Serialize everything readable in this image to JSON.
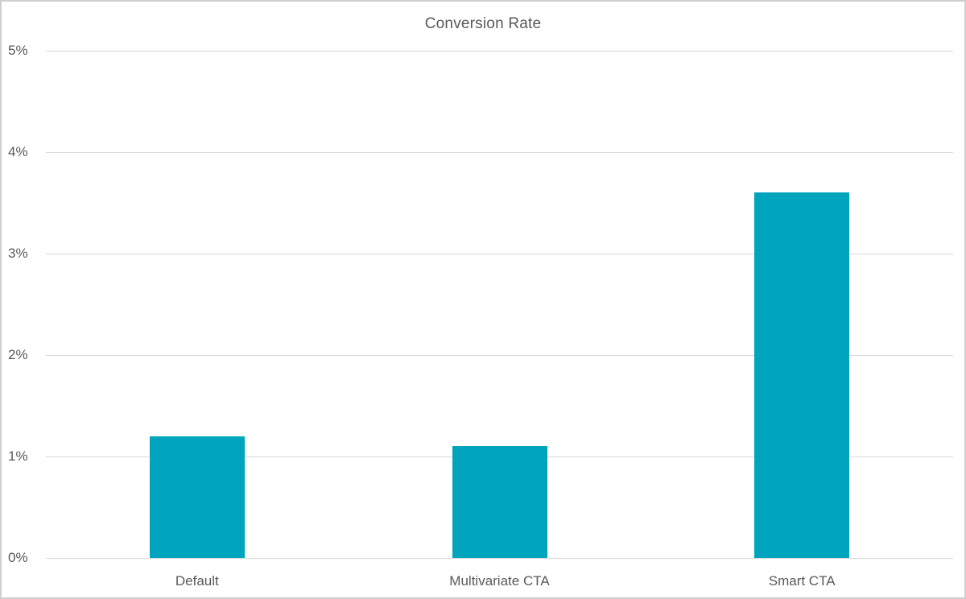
{
  "chart_data": {
    "type": "bar",
    "title": "Conversion Rate",
    "categories": [
      "Default",
      "Multivariate CTA",
      "Smart CTA"
    ],
    "values": [
      1.2,
      1.1,
      3.6
    ],
    "value_unit": "%",
    "xlabel": "",
    "ylabel": "",
    "ylim": [
      0,
      5
    ],
    "yticks": [
      0,
      1,
      2,
      3,
      4,
      5
    ],
    "ytick_labels": [
      "0%",
      "1%",
      "2%",
      "3%",
      "4%",
      "5%"
    ],
    "grid": true,
    "legend": false,
    "colors": {
      "bar": "#00a4bd",
      "gridline": "#d9d9d9",
      "text": "#595959",
      "frame_border": "#cfcfcf",
      "background": "#ffffff"
    }
  }
}
